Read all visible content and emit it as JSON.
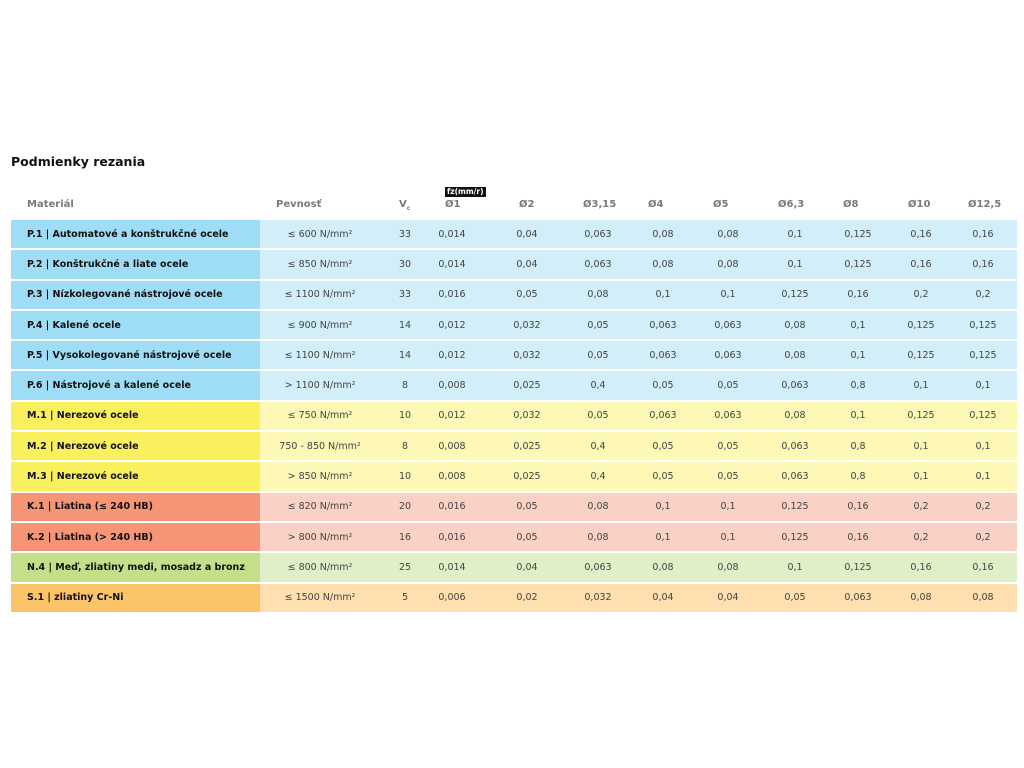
{
  "title": "Podmienky rezania",
  "header": {
    "material": "Materiál",
    "strength": "Pevnosť",
    "vc": "V",
    "vc_sub": "c",
    "fz_badge": "fz(mm/r)",
    "diameters": [
      "Ø1",
      "Ø2",
      "Ø3,15",
      "Ø4",
      "Ø5",
      "Ø6,3",
      "Ø8",
      "Ø10",
      "Ø12,5"
    ]
  },
  "colors": {
    "P": [
      "#9fdcf5",
      "#d2eef9"
    ],
    "M": [
      "#faef5d",
      "#fdf8b6"
    ],
    "K": [
      "#f59575",
      "#f9d1c5"
    ],
    "N": [
      "#c3df89",
      "#e1efc8"
    ],
    "S": [
      "#fbc469",
      "#fddfb0"
    ]
  },
  "rows": [
    {
      "group": "P",
      "name": "P.1 | Automatové a konštrukčné ocele",
      "strength": "≤ 600 N/mm²",
      "vc": "33",
      "fz": [
        "0,014",
        "0,04",
        "0,063",
        "0,08",
        "0,08",
        "0,1",
        "0,125",
        "0,16",
        "0,16"
      ]
    },
    {
      "group": "P",
      "name": "P.2 | Konštrukčné a liate ocele",
      "strength": "≤ 850 N/mm²",
      "vc": "30",
      "fz": [
        "0,014",
        "0,04",
        "0,063",
        "0,08",
        "0,08",
        "0,1",
        "0,125",
        "0,16",
        "0,16"
      ]
    },
    {
      "group": "P",
      "name": "P.3 | Nízkolegované nástrojové ocele",
      "strength": "≤ 1100 N/mm²",
      "vc": "33",
      "fz": [
        "0,016",
        "0,05",
        "0,08",
        "0,1",
        "0,1",
        "0,125",
        "0,16",
        "0,2",
        "0,2"
      ]
    },
    {
      "group": "P",
      "name": "P.4 | Kalené ocele",
      "strength": "≤ 900 N/mm²",
      "vc": "14",
      "fz": [
        "0,012",
        "0,032",
        "0,05",
        "0,063",
        "0,063",
        "0,08",
        "0,1",
        "0,125",
        "0,125"
      ]
    },
    {
      "group": "P",
      "name": "P.5 | Vysokolegované nástrojové ocele",
      "strength": "≤ 1100 N/mm²",
      "vc": "14",
      "fz": [
        "0,012",
        "0,032",
        "0,05",
        "0,063",
        "0,063",
        "0,08",
        "0,1",
        "0,125",
        "0,125"
      ]
    },
    {
      "group": "P",
      "name": "P.6 | Nástrojové a kalené ocele",
      "strength": "> 1100 N/mm²",
      "vc": "8",
      "fz": [
        "0,008",
        "0,025",
        "0,4",
        "0,05",
        "0,05",
        "0,063",
        "0,8",
        "0,1",
        "0,1"
      ]
    },
    {
      "group": "M",
      "name": "M.1 | Nerezové ocele",
      "strength": "≤ 750 N/mm²",
      "vc": "10",
      "fz": [
        "0,012",
        "0,032",
        "0,05",
        "0,063",
        "0,063",
        "0,08",
        "0,1",
        "0,125",
        "0,125"
      ]
    },
    {
      "group": "M",
      "name": "M.2 | Nerezové ocele",
      "strength": "750 - 850 N/mm²",
      "vc": "8",
      "fz": [
        "0,008",
        "0,025",
        "0,4",
        "0,05",
        "0,05",
        "0,063",
        "0,8",
        "0,1",
        "0,1"
      ]
    },
    {
      "group": "M",
      "name": "M.3 | Nerezové ocele",
      "strength": "> 850 N/mm²",
      "vc": "10",
      "fz": [
        "0,008",
        "0,025",
        "0,4",
        "0,05",
        "0,05",
        "0,063",
        "0,8",
        "0,1",
        "0,1"
      ]
    },
    {
      "group": "K",
      "name": "K.1 | Liatina (≤ 240 HB)",
      "strength": "≤ 820 N/mm²",
      "vc": "20",
      "fz": [
        "0,016",
        "0,05",
        "0,08",
        "0,1",
        "0,1",
        "0,125",
        "0,16",
        "0,2",
        "0,2"
      ]
    },
    {
      "group": "K",
      "name": "K.2 | Liatina (> 240 HB)",
      "strength": "> 800 N/mm²",
      "vc": "16",
      "fz": [
        "0,016",
        "0,05",
        "0,08",
        "0,1",
        "0,1",
        "0,125",
        "0,16",
        "0,2",
        "0,2"
      ]
    },
    {
      "group": "N",
      "name": "N.4 | Meď, zliatiny medi, mosadz a bronz",
      "strength": "≤ 800 N/mm²",
      "vc": "25",
      "fz": [
        "0,014",
        "0,04",
        "0,063",
        "0,08",
        "0,08",
        "0,1",
        "0,125",
        "0,16",
        "0,16"
      ]
    },
    {
      "group": "S",
      "name": "S.1 | zliatiny Cr-Ni",
      "strength": "≤ 1500 N/mm²",
      "vc": "5",
      "fz": [
        "0,006",
        "0,02",
        "0,032",
        "0,04",
        "0,04",
        "0,05",
        "0,063",
        "0,08",
        "0,08"
      ]
    }
  ]
}
